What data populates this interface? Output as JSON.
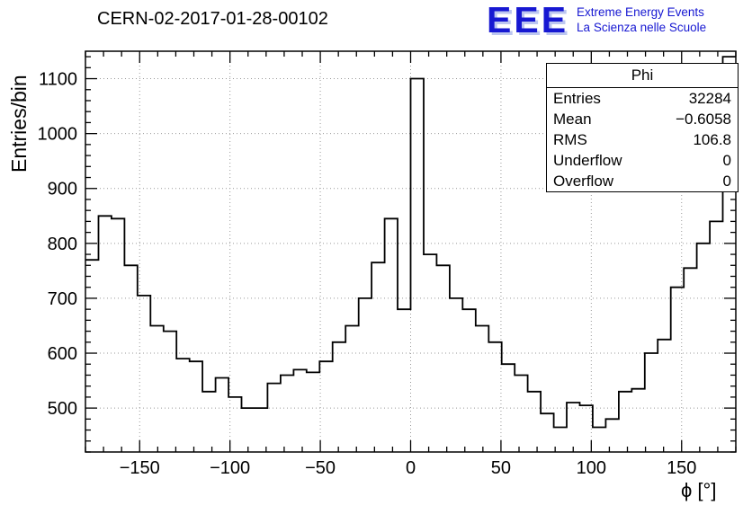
{
  "header": {
    "title": "CERN-02-2017-01-28-00102"
  },
  "logo": {
    "eee": "EEE",
    "line1": "Extreme Energy Events",
    "line2": "La Scienza nelle Scuole",
    "color": "#1718d2",
    "shadow_color": "#bcc6f0"
  },
  "stats_box": {
    "title": "Phi",
    "rows": [
      {
        "label": "Entries",
        "value": "32284"
      },
      {
        "label": "Mean",
        "value": "−0.6058"
      },
      {
        "label": "RMS",
        "value": "106.8"
      },
      {
        "label": "Underflow",
        "value": "0"
      },
      {
        "label": "Overflow",
        "value": "0"
      }
    ]
  },
  "chart_data": {
    "type": "bar",
    "subtype": "histogram-step",
    "title": "CERN-02-2017-01-28-00102",
    "xlabel": "ϕ [°]",
    "ylabel": "Entries/bin",
    "xlim": [
      -180,
      180
    ],
    "ylim": [
      420,
      1150
    ],
    "xticks": [
      -150,
      -100,
      -50,
      0,
      50,
      100,
      150
    ],
    "yticks": [
      500,
      600,
      700,
      800,
      900,
      1000,
      1100
    ],
    "x_minor_step": 10,
    "y_minor_step": 20,
    "grid": true,
    "legend": "none",
    "bins_start": -180,
    "bin_width": 7.2,
    "values": [
      770,
      850,
      845,
      760,
      705,
      650,
      640,
      590,
      585,
      530,
      555,
      520,
      500,
      500,
      545,
      560,
      570,
      565,
      585,
      620,
      650,
      700,
      765,
      845,
      680,
      1100,
      780,
      760,
      700,
      680,
      650,
      620,
      580,
      560,
      530,
      490,
      465,
      510,
      505,
      465,
      480,
      530,
      535,
      600,
      625,
      720,
      755,
      800,
      840,
      1140
    ],
    "line_color": "#000000",
    "grid_color": "#999999"
  }
}
